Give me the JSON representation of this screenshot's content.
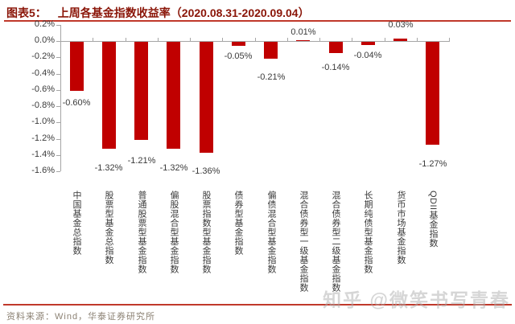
{
  "header": {
    "figure_label": "图表5：",
    "title": "上周各基金指数收益率（2020.08.31-2020.09.04）"
  },
  "chart_data": {
    "type": "bar",
    "title": "上周各基金指数收益率（2020.08.31-2020.09.04）",
    "categories": [
      "中国基金总指数",
      "股票型基金总指数",
      "普通股票型基金指数",
      "偏股混合型基金指数",
      "股票指数型基金指数",
      "债券型基金指数",
      "偏债混合型基金指数",
      "混合债券型一级基金指数",
      "混合债券型二级基金指数",
      "长期纯债型基金指数",
      "货币市场基金指数",
      "QDII基金指数"
    ],
    "values": [
      -0.6,
      -1.32,
      -1.21,
      -1.32,
      -1.36,
      -0.05,
      -0.21,
      0.01,
      -0.14,
      -0.04,
      0.03,
      -1.27
    ],
    "labels": [
      "-0.60%",
      "-1.32%",
      "-1.21%",
      "-1.32%",
      "-1.36%",
      "-0.05%",
      "-0.21%",
      "0.01%",
      "-0.14%",
      "-0.04%",
      "0.03%",
      "-1.27%"
    ],
    "y_ticks": [
      "0.2%",
      "0.0%",
      "-0.2%",
      "-0.4%",
      "-0.6%",
      "-0.8%",
      "-1.0%",
      "-1.2%",
      "-1.4%",
      "-1.6%"
    ],
    "ylim": [
      -1.6,
      0.2
    ],
    "xlabel": "",
    "ylabel": "",
    "grid": false,
    "legend": "none",
    "bar_color": "#C00000",
    "layout": {
      "label_dy": [
        10,
        18,
        20,
        18,
        18,
        8,
        18,
        4,
        13,
        8,
        11,
        18
      ],
      "cat_top": 237
    }
  },
  "footer": {
    "source": "资料来源：Wind，华泰证券研究所"
  },
  "watermark": "知乎 @微笑书写青春",
  "colors": {
    "bar": "#C00000",
    "title": "#8A1508",
    "rule": "#C0392B",
    "axis": "#A6A6A6",
    "text": "#3A3A3A",
    "source": "#8C8274",
    "watermark": "#AFAFAF"
  }
}
